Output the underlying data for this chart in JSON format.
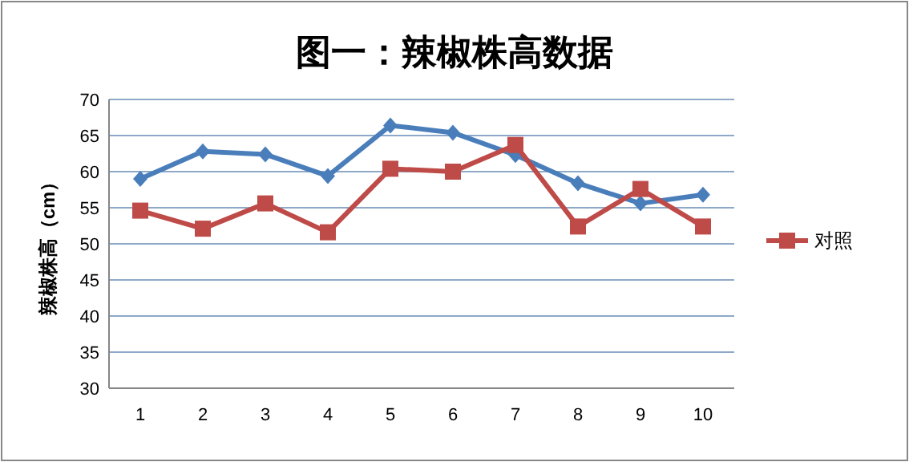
{
  "chart_data": {
    "type": "line",
    "title": "图一：辣椒株高数据",
    "ylabel": "辣椒株高（cm）",
    "categories": [
      "1",
      "2",
      "3",
      "4",
      "5",
      "6",
      "7",
      "8",
      "9",
      "10"
    ],
    "series": [
      {
        "color": "#4a7ebb",
        "marker": "diamond",
        "values": [
          59.0,
          62.8,
          62.4,
          59.4,
          66.4,
          65.4,
          62.3,
          58.4,
          55.6,
          56.8
        ]
      },
      {
        "name": "对照",
        "color": "#be4b48",
        "marker": "square",
        "values": [
          54.6,
          52.1,
          55.6,
          51.6,
          60.4,
          60.0,
          63.7,
          52.4,
          57.6,
          52.4
        ]
      }
    ],
    "ylim": [
      30,
      70
    ],
    "yticks": [
      30,
      35,
      40,
      45,
      50,
      55,
      60,
      65,
      70
    ],
    "grid": "y",
    "legend": "right"
  }
}
